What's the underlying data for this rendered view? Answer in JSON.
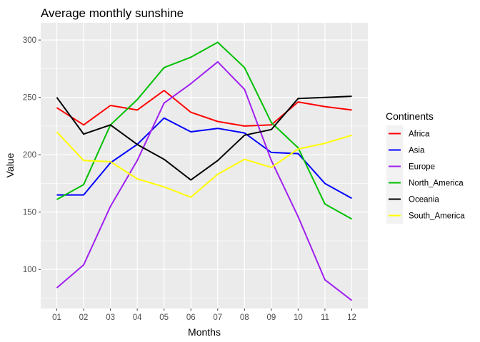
{
  "chart_data": {
    "type": "line",
    "title": "Average monthly sunshine",
    "xlabel": "Months",
    "ylabel": "Value",
    "categories": [
      "01",
      "02",
      "03",
      "04",
      "05",
      "06",
      "07",
      "08",
      "09",
      "10",
      "11",
      "12"
    ],
    "ylim": [
      66,
      315
    ],
    "yticks": [
      100,
      150,
      200,
      250,
      300
    ],
    "grid": true,
    "legend": {
      "title": "Continents",
      "placement": "right"
    },
    "series": [
      {
        "name": "Africa",
        "color": "#ff0000",
        "values": [
          241,
          226,
          243,
          239,
          256,
          237,
          229,
          225,
          226,
          246,
          242,
          239
        ]
      },
      {
        "name": "Asia",
        "color": "#0000ff",
        "values": [
          165,
          165,
          193,
          209,
          232,
          220,
          223,
          219,
          202,
          201,
          175,
          162
        ]
      },
      {
        "name": "Europe",
        "color": "#a020f0",
        "values": [
          84,
          104,
          155,
          195,
          245,
          262,
          281,
          257,
          195,
          146,
          91,
          73
        ]
      },
      {
        "name": "North_America",
        "color": "#00c000",
        "values": [
          161,
          174,
          226,
          248,
          276,
          285,
          298,
          276,
          228,
          206,
          157,
          144
        ]
      },
      {
        "name": "Oceania",
        "color": "#000000",
        "values": [
          250,
          218,
          226,
          209,
          196,
          178,
          195,
          217,
          222,
          249,
          250,
          251
        ]
      },
      {
        "name": "South_America",
        "color": "#ffff00",
        "values": [
          220,
          195,
          194,
          179,
          172,
          163,
          183,
          196,
          189,
          205,
          210,
          217
        ]
      }
    ]
  }
}
